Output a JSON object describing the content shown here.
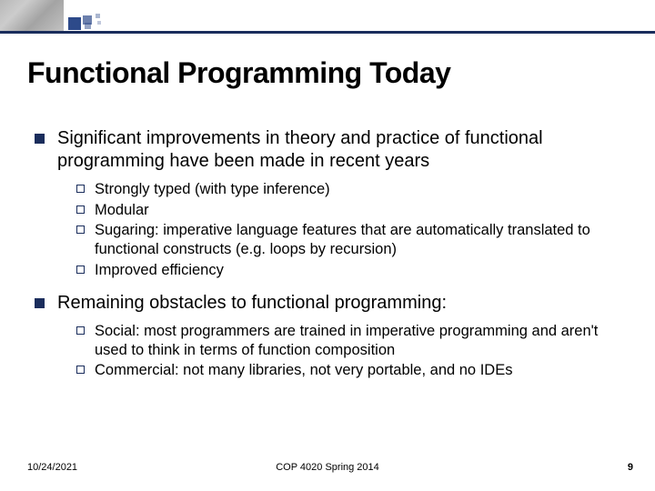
{
  "colors": {
    "accent": "#1a2d5c",
    "text": "#000000",
    "background": "#ffffff"
  },
  "title": "Functional Programming Today",
  "bullets": [
    {
      "text": "Significant improvements in theory and practice of functional programming have been made in recent years",
      "sub": [
        "Strongly typed (with type inference)",
        "Modular",
        "Sugaring: imperative language features that are automatically translated to functional constructs (e.g. loops by recursion)",
        "Improved efficiency"
      ]
    },
    {
      "text": "Remaining obstacles to functional programming:",
      "sub": [
        "Social: most programmers are trained in imperative programming and aren't used to think in terms of function composition",
        "Commercial: not many libraries, not very portable, and no IDEs"
      ]
    }
  ],
  "footer": {
    "date": "10/24/2021",
    "course": "COP 4020 Spring 2014",
    "page": "9"
  },
  "typography": {
    "title_fontsize": 32,
    "title_weight": 900,
    "l1_fontsize": 20,
    "l2_fontsize": 16.5,
    "footer_fontsize": 11
  },
  "bullet_style": {
    "l1_shape": "filled-square",
    "l1_size": 11,
    "l1_color": "#1a2d5c",
    "l2_shape": "hollow-square",
    "l2_size": 9,
    "l2_border_color": "#1a2d5c"
  }
}
